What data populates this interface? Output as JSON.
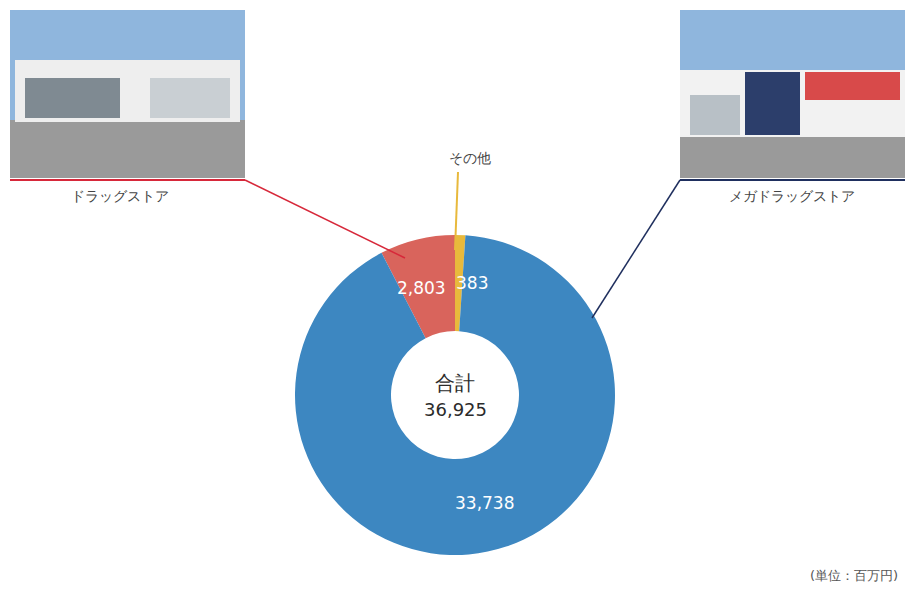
{
  "chart_data": {
    "type": "pie",
    "categories": [
      "その他",
      "ドラッグストア",
      "メガドラッグストア"
    ],
    "values": [
      383,
      2803,
      33738
    ],
    "value_labels": [
      "383",
      "2,803",
      "33,738"
    ],
    "colors": [
      "#e8b93c",
      "#d9645c",
      "#3d87c1"
    ],
    "data_labels": true,
    "center_label": "合計",
    "total": 36925,
    "total_label": "36,925",
    "unit_note": "(単位：百万円)"
  }
}
